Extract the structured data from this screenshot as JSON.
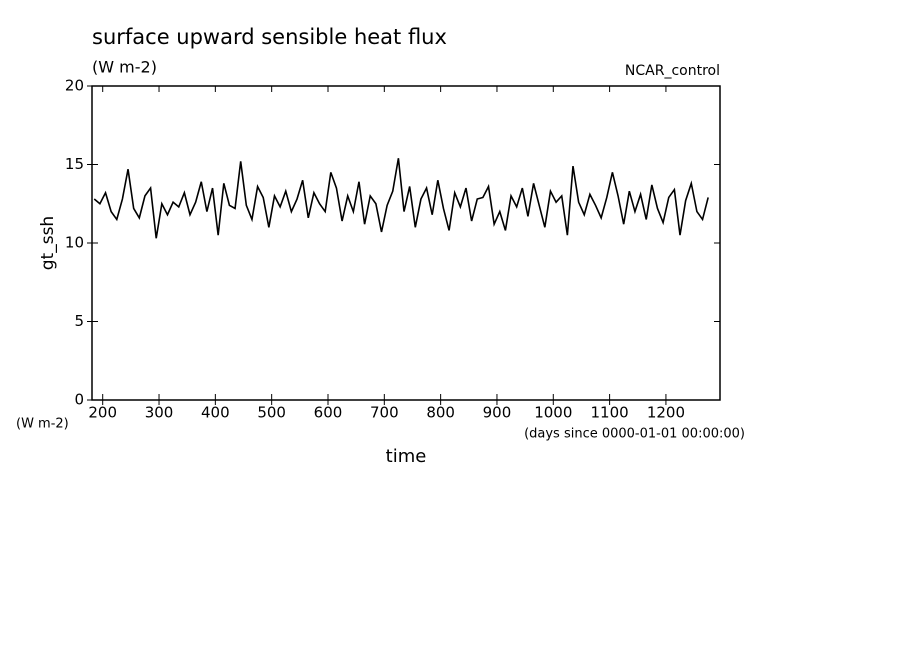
{
  "chart_data": {
    "type": "line",
    "title": "surface upward sensible heat flux",
    "subtitle": "(W m-2)",
    "y_label": "gt_ssh",
    "y_units": "(W m-2)",
    "x_label": "time",
    "x_units": "(days since 0000-01-01 00:00:00)",
    "x": [
      185,
      195,
      205,
      215,
      225,
      235,
      245,
      255,
      265,
      275,
      285,
      295,
      305,
      315,
      325,
      335,
      345,
      355,
      365,
      375,
      385,
      395,
      405,
      415,
      425,
      435,
      445,
      455,
      465,
      475,
      485,
      495,
      505,
      515,
      525,
      535,
      545,
      555,
      565,
      575,
      585,
      595,
      605,
      615,
      625,
      635,
      645,
      655,
      665,
      675,
      685,
      695,
      705,
      715,
      725,
      735,
      745,
      755,
      765,
      775,
      785,
      795,
      805,
      815,
      825,
      835,
      845,
      855,
      865,
      875,
      885,
      895,
      905,
      915,
      925,
      935,
      945,
      955,
      965,
      975,
      985,
      995,
      1005,
      1015,
      1025,
      1035,
      1045,
      1055,
      1065,
      1075,
      1085,
      1095,
      1105,
      1115,
      1125,
      1135,
      1145,
      1155,
      1165,
      1175,
      1185,
      1195,
      1205,
      1215,
      1225,
      1235,
      1245,
      1255,
      1265,
      1275
    ],
    "series": [
      {
        "name": "NCAR_control",
        "color": "#000000",
        "values": [
          12.8,
          12.5,
          13.2,
          12.0,
          11.5,
          12.8,
          14.7,
          12.2,
          11.6,
          13.0,
          13.5,
          10.3,
          12.5,
          11.8,
          12.6,
          12.3,
          13.2,
          11.8,
          12.6,
          13.9,
          12.0,
          13.5,
          10.5,
          13.8,
          12.4,
          12.2,
          15.2,
          12.4,
          11.5,
          13.6,
          12.9,
          11.0,
          13.0,
          12.3,
          13.3,
          12.0,
          12.8,
          14.0,
          11.6,
          13.2,
          12.5,
          12.0,
          14.5,
          13.5,
          11.4,
          13.0,
          12.0,
          13.9,
          11.2,
          13.0,
          12.5,
          10.7,
          12.4,
          13.3,
          15.4,
          12.0,
          13.6,
          11.0,
          12.8,
          13.5,
          11.8,
          14.0,
          12.2,
          10.8,
          13.2,
          12.3,
          13.5,
          11.4,
          12.8,
          12.9,
          13.6,
          11.2,
          12.0,
          10.8,
          13.0,
          12.3,
          13.5,
          11.7,
          13.8,
          12.4,
          11.0,
          13.3,
          12.6,
          13.0,
          10.5,
          14.9,
          12.6,
          11.8,
          13.1,
          12.4,
          11.6,
          12.9,
          14.5,
          13.0,
          11.2,
          13.3,
          12.0,
          13.1,
          11.5,
          13.7,
          12.2,
          11.3,
          12.9,
          13.4,
          10.5,
          12.7,
          13.8,
          12.0,
          11.5,
          12.9
        ]
      }
    ],
    "xlim": [
      181,
      1296
    ],
    "xticks": [
      200,
      300,
      400,
      500,
      600,
      700,
      800,
      900,
      1000,
      1100,
      1200
    ],
    "ylim": [
      0,
      20
    ],
    "yticks": [
      0,
      5,
      10,
      15,
      20
    ]
  }
}
